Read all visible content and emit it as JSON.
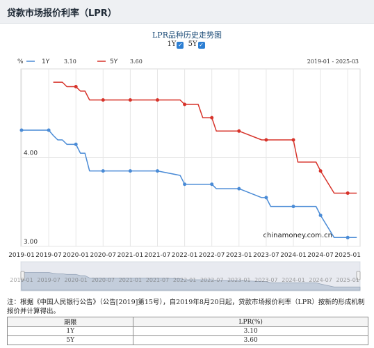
{
  "page": {
    "title": "贷款市场报价利率（LPR）"
  },
  "chart_panel": {
    "title": "LPR品种历史走势图",
    "toggles": [
      {
        "label": "1Y",
        "checked": true,
        "check": "✓"
      },
      {
        "label": "5Y",
        "checked": true,
        "check": "✓"
      }
    ],
    "watermark": "chinamoney.com.cn",
    "date_range": "2019-01 - 2025-03",
    "legend": [
      {
        "name": "1Y",
        "value": "3.10"
      },
      {
        "name": "5Y",
        "value": "3.60"
      }
    ]
  },
  "chart_data": {
    "type": "line",
    "y_unit": "%",
    "ylim": [
      3.0,
      5.0
    ],
    "y_ticks": [
      "3.00",
      "4.00"
    ],
    "x_ticks": [
      "2019-01",
      "2019-07",
      "2020-01",
      "2020-07",
      "2021-01",
      "2021-07",
      "2022-01",
      "2022-07",
      "2023-01",
      "2023-07",
      "2024-01",
      "2024-07",
      "2025-01"
    ],
    "grid": true,
    "legend_position": "top-left",
    "series": [
      {
        "name": "1Y",
        "color": "#4a8bd6",
        "points": [
          [
            "2019-01",
            4.31
          ],
          [
            "2019-07",
            4.31
          ],
          [
            "2019-08",
            4.25
          ],
          [
            "2019-09",
            4.2
          ],
          [
            "2019-10",
            4.2
          ],
          [
            "2019-11",
            4.15
          ],
          [
            "2019-12",
            4.15
          ],
          [
            "2020-01",
            4.15
          ],
          [
            "2020-02",
            4.05
          ],
          [
            "2020-03",
            4.05
          ],
          [
            "2020-04",
            3.85
          ],
          [
            "2020-05",
            3.85
          ],
          [
            "2020-07",
            3.85
          ],
          [
            "2021-01",
            3.85
          ],
          [
            "2021-07",
            3.85
          ],
          [
            "2021-12",
            3.8
          ],
          [
            "2022-01",
            3.7
          ],
          [
            "2022-07",
            3.7
          ],
          [
            "2022-08",
            3.65
          ],
          [
            "2023-01",
            3.65
          ],
          [
            "2023-06",
            3.55
          ],
          [
            "2023-07",
            3.55
          ],
          [
            "2023-08",
            3.45
          ],
          [
            "2024-01",
            3.45
          ],
          [
            "2024-06",
            3.45
          ],
          [
            "2024-07",
            3.35
          ],
          [
            "2024-10",
            3.1
          ],
          [
            "2025-01",
            3.1
          ],
          [
            "2025-03",
            3.1
          ]
        ]
      },
      {
        "name": "5Y",
        "color": "#d7332a",
        "points": [
          [
            "2019-08",
            4.85
          ],
          [
            "2019-09",
            4.85
          ],
          [
            "2019-10",
            4.85
          ],
          [
            "2019-11",
            4.8
          ],
          [
            "2019-12",
            4.8
          ],
          [
            "2020-01",
            4.8
          ],
          [
            "2020-02",
            4.75
          ],
          [
            "2020-03",
            4.75
          ],
          [
            "2020-04",
            4.65
          ],
          [
            "2020-05",
            4.65
          ],
          [
            "2020-07",
            4.65
          ],
          [
            "2021-01",
            4.65
          ],
          [
            "2021-07",
            4.65
          ],
          [
            "2021-12",
            4.65
          ],
          [
            "2022-01",
            4.6
          ],
          [
            "2022-04",
            4.6
          ],
          [
            "2022-05",
            4.45
          ],
          [
            "2022-07",
            4.45
          ],
          [
            "2022-08",
            4.3
          ],
          [
            "2023-01",
            4.3
          ],
          [
            "2023-06",
            4.2
          ],
          [
            "2023-07",
            4.2
          ],
          [
            "2024-01",
            4.2
          ],
          [
            "2024-02",
            3.95
          ],
          [
            "2024-06",
            3.95
          ],
          [
            "2024-07",
            3.85
          ],
          [
            "2024-10",
            3.6
          ],
          [
            "2025-01",
            3.6
          ],
          [
            "2025-03",
            3.6
          ]
        ]
      }
    ],
    "markers": {
      "1Y": [
        [
          "2019-01",
          4.31
        ],
        [
          "2019-07",
          4.31
        ],
        [
          "2020-01",
          4.15
        ],
        [
          "2020-07",
          3.85
        ],
        [
          "2021-01",
          3.85
        ],
        [
          "2021-07",
          3.85
        ],
        [
          "2022-01",
          3.7
        ],
        [
          "2022-07",
          3.7
        ],
        [
          "2023-01",
          3.65
        ],
        [
          "2023-07",
          3.55
        ],
        [
          "2024-01",
          3.45
        ],
        [
          "2024-07",
          3.35
        ],
        [
          "2025-01",
          3.1
        ]
      ],
      "5Y": [
        [
          "2020-01",
          4.8
        ],
        [
          "2020-07",
          4.65
        ],
        [
          "2021-01",
          4.65
        ],
        [
          "2021-07",
          4.65
        ],
        [
          "2022-01",
          4.6
        ],
        [
          "2022-07",
          4.45
        ],
        [
          "2023-01",
          4.3
        ],
        [
          "2023-07",
          4.2
        ],
        [
          "2024-01",
          4.2
        ],
        [
          "2024-07",
          3.85
        ],
        [
          "2025-01",
          3.6
        ]
      ]
    },
    "navigator": {
      "labels": [
        "2019-01",
        "2019-07",
        "2020-01",
        "2020-07",
        "2021-01",
        "2021-07",
        "2022-01",
        "2022-07",
        "2023-01",
        "2023-07",
        "2024-01",
        "2024-07",
        "2025-01"
      ]
    }
  },
  "note": "注：根据《中国人民银行公告》（公告[2019]第15号），自2019年8月20日起，贷款市场报价利率（LPR）按新的形成机制报价并计算得出。",
  "table": {
    "headers": [
      "期限",
      "LPR(%)"
    ],
    "rows": [
      [
        "1Y",
        "3.10"
      ],
      [
        "5Y",
        "3.60"
      ]
    ]
  }
}
